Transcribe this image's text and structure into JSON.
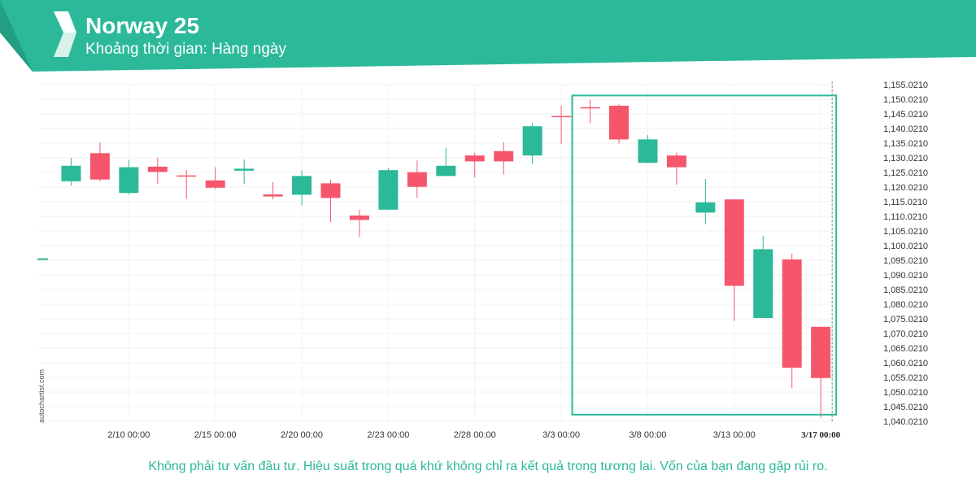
{
  "header": {
    "title": "Norway 25",
    "subtitle": "Khoảng thời gian: Hàng ngày",
    "logo_icon": "autochartist-logo-icon",
    "bg_color": "#2bb99a",
    "dark_color": "#249e83"
  },
  "watermark": "autochartist.com",
  "footer": {
    "disclaimer": "Không phải tư vấn đầu tư. Hiệu suất trong quá khứ không chỉ ra kết quả trong tương lai. Vốn của bạn đang gặp rủi ro.",
    "color": "#2bb99a"
  },
  "chart_data": {
    "type": "candlestick",
    "title": "",
    "xlabel": "",
    "ylabel": "",
    "ylim": [
      1040.021,
      1155.021
    ],
    "y_ticks": [
      "1,155.0210",
      "1,150.0210",
      "1,145.0210",
      "1,140.0210",
      "1,135.0210",
      "1,130.0210",
      "1,125.0210",
      "1,120.0210",
      "1,115.0210",
      "1,110.0210",
      "1,105.0210",
      "1,100.0210",
      "1,095.0210",
      "1,090.0210",
      "1,085.0210",
      "1,080.0210",
      "1,075.0210",
      "1,070.0210",
      "1,065.0210",
      "1,060.0210",
      "1,055.0210",
      "1,050.0210",
      "1,045.0210",
      "1,040.0210"
    ],
    "x_ticks": [
      {
        "label": "2/10 00:00",
        "index": 3
      },
      {
        "label": "2/15 00:00",
        "index": 6
      },
      {
        "label": "2/20 00:00",
        "index": 9
      },
      {
        "label": "2/23 00:00",
        "index": 12
      },
      {
        "label": "2/28 00:00",
        "index": 15
      },
      {
        "label": "3/3 00:00",
        "index": 18
      },
      {
        "label": "3/8 00:00",
        "index": 21
      },
      {
        "label": "3/13 00:00",
        "index": 24
      },
      {
        "label": "3/17 00:00",
        "index": 27,
        "highlight": true
      }
    ],
    "up_color": "#2bb99a",
    "down_color": "#f5566c",
    "candles": [
      {
        "o": 1095.4,
        "h": 1095.4,
        "l": 1095.4,
        "c": 1095.4,
        "dir": "up"
      },
      {
        "o": 1122.0,
        "h": 1130.0,
        "l": 1120.5,
        "c": 1127.3,
        "dir": "up"
      },
      {
        "o": 1131.6,
        "h": 1135.2,
        "l": 1122.0,
        "c": 1122.6,
        "dir": "down"
      },
      {
        "o": 1118.0,
        "h": 1129.3,
        "l": 1117.5,
        "c": 1126.8,
        "dir": "up"
      },
      {
        "o": 1127.0,
        "h": 1130.0,
        "l": 1121.2,
        "c": 1125.2,
        "dir": "down"
      },
      {
        "o": 1124.0,
        "h": 1125.8,
        "l": 1116.0,
        "c": 1123.8,
        "dir": "down"
      },
      {
        "o": 1122.3,
        "h": 1126.8,
        "l": 1119.3,
        "c": 1119.8,
        "dir": "down"
      },
      {
        "o": 1125.6,
        "h": 1129.4,
        "l": 1121.0,
        "c": 1126.3,
        "dir": "up"
      },
      {
        "o": 1117.5,
        "h": 1121.7,
        "l": 1115.8,
        "c": 1116.8,
        "dir": "down"
      },
      {
        "o": 1117.4,
        "h": 1125.8,
        "l": 1113.8,
        "c": 1123.8,
        "dir": "up"
      },
      {
        "o": 1121.3,
        "h": 1122.6,
        "l": 1108.0,
        "c": 1116.3,
        "dir": "down"
      },
      {
        "o": 1110.3,
        "h": 1112.3,
        "l": 1103.0,
        "c": 1108.8,
        "dir": "down"
      },
      {
        "o": 1112.3,
        "h": 1126.6,
        "l": 1112.3,
        "c": 1125.8,
        "dir": "up"
      },
      {
        "o": 1125.1,
        "h": 1129.1,
        "l": 1116.3,
        "c": 1120.1,
        "dir": "down"
      },
      {
        "o": 1123.8,
        "h": 1133.3,
        "l": 1123.8,
        "c": 1127.3,
        "dir": "up"
      },
      {
        "o": 1130.8,
        "h": 1131.8,
        "l": 1123.3,
        "c": 1128.8,
        "dir": "down"
      },
      {
        "o": 1132.3,
        "h": 1135.3,
        "l": 1124.3,
        "c": 1128.8,
        "dir": "down"
      },
      {
        "o": 1130.8,
        "h": 1141.8,
        "l": 1127.8,
        "c": 1140.8,
        "dir": "up"
      },
      {
        "o": 1144.3,
        "h": 1147.8,
        "l": 1134.8,
        "c": 1144.3,
        "dir": "down"
      },
      {
        "o": 1147.3,
        "h": 1149.8,
        "l": 1141.8,
        "c": 1147.3,
        "dir": "down"
      },
      {
        "o": 1147.8,
        "h": 1148.3,
        "l": 1134.8,
        "c": 1136.3,
        "dir": "down"
      },
      {
        "o": 1128.3,
        "h": 1137.8,
        "l": 1128.3,
        "c": 1136.3,
        "dir": "up"
      },
      {
        "o": 1130.8,
        "h": 1131.8,
        "l": 1120.8,
        "c": 1126.8,
        "dir": "down"
      },
      {
        "o": 1111.3,
        "h": 1122.8,
        "l": 1107.3,
        "c": 1114.8,
        "dir": "up"
      },
      {
        "o": 1115.8,
        "h": 1115.8,
        "l": 1074.3,
        "c": 1086.3,
        "dir": "down"
      },
      {
        "o": 1075.3,
        "h": 1103.3,
        "l": 1075.3,
        "c": 1098.8,
        "dir": "up"
      },
      {
        "o": 1095.3,
        "h": 1097.3,
        "l": 1051.3,
        "c": 1058.3,
        "dir": "down"
      },
      {
        "o": 1072.3,
        "h": 1072.3,
        "l": 1041.3,
        "c": 1054.8,
        "dir": "down"
      }
    ],
    "highlight_box": {
      "from_index": 19,
      "to_index": 27,
      "y_top": 1151.3,
      "y_bottom": 1042.3,
      "color": "#2bb99a"
    },
    "current_time_line": {
      "index": 27,
      "style": "dashed"
    }
  }
}
